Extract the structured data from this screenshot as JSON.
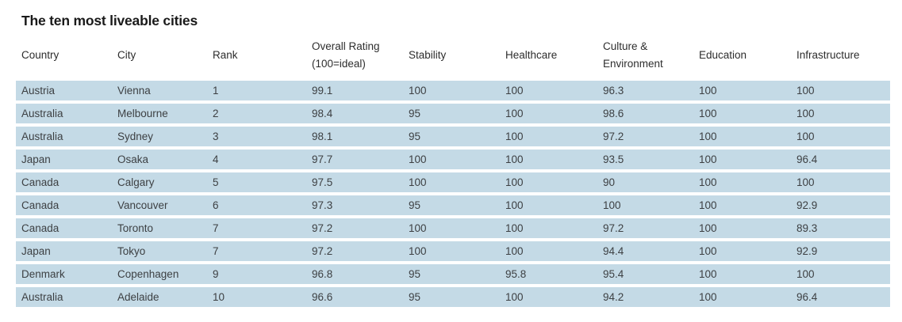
{
  "title": "The ten most liveable cities",
  "colors": {
    "row_band": "#c4dae6",
    "cell_text": "#3d4043",
    "header_text": "#2d2d2d",
    "title_text": "#1a1a1a"
  },
  "table": {
    "columns": [
      {
        "id": "country",
        "lines": [
          "Country"
        ]
      },
      {
        "id": "city",
        "lines": [
          "City"
        ]
      },
      {
        "id": "rank",
        "lines": [
          "Rank"
        ]
      },
      {
        "id": "overall-rating",
        "lines": [
          "Overall Rating",
          "(100=ideal)"
        ]
      },
      {
        "id": "stability",
        "lines": [
          "Stability"
        ]
      },
      {
        "id": "healthcare",
        "lines": [
          "Healthcare"
        ]
      },
      {
        "id": "culture-environment",
        "lines": [
          "Culture &",
          "Environment"
        ]
      },
      {
        "id": "education",
        "lines": [
          "Education"
        ]
      },
      {
        "id": "infrastructure",
        "lines": [
          "Infrastructure"
        ]
      }
    ],
    "rows": [
      [
        "Austria",
        "Vienna",
        "1",
        "99.1",
        "100",
        "100",
        "96.3",
        "100",
        "100"
      ],
      [
        "Australia",
        "Melbourne",
        "2",
        "98.4",
        "95",
        "100",
        "98.6",
        "100",
        "100"
      ],
      [
        "Australia",
        "Sydney",
        "3",
        "98.1",
        "95",
        "100",
        "97.2",
        "100",
        "100"
      ],
      [
        "Japan",
        "Osaka",
        "4",
        "97.7",
        "100",
        "100",
        "93.5",
        "100",
        "96.4"
      ],
      [
        "Canada",
        "Calgary",
        "5",
        "97.5",
        "100",
        "100",
        "90",
        "100",
        "100"
      ],
      [
        "Canada",
        "Vancouver",
        "6",
        "97.3",
        "95",
        "100",
        "100",
        "100",
        "92.9"
      ],
      [
        "Canada",
        "Toronto",
        "7",
        "97.2",
        "100",
        "100",
        "97.2",
        "100",
        "89.3"
      ],
      [
        "Japan",
        "Tokyo",
        "7",
        "97.2",
        "100",
        "100",
        "94.4",
        "100",
        "92.9"
      ],
      [
        "Denmark",
        "Copenhagen",
        "9",
        "96.8",
        "95",
        "95.8",
        "95.4",
        "100",
        "100"
      ],
      [
        "Australia",
        "Adelaide",
        "10",
        "96.6",
        "95",
        "100",
        "94.2",
        "100",
        "96.4"
      ]
    ]
  },
  "chart_data": {
    "type": "table",
    "title": "The ten most liveable cities",
    "columns": [
      "Country",
      "City",
      "Rank",
      "Overall Rating (100=ideal)",
      "Stability",
      "Healthcare",
      "Culture & Environment",
      "Education",
      "Infrastructure"
    ],
    "rows": [
      [
        "Austria",
        "Vienna",
        1,
        99.1,
        100,
        100,
        96.3,
        100,
        100
      ],
      [
        "Australia",
        "Melbourne",
        2,
        98.4,
        95,
        100,
        98.6,
        100,
        100
      ],
      [
        "Australia",
        "Sydney",
        3,
        98.1,
        95,
        100,
        97.2,
        100,
        100
      ],
      [
        "Japan",
        "Osaka",
        4,
        97.7,
        100,
        100,
        93.5,
        100,
        96.4
      ],
      [
        "Canada",
        "Calgary",
        5,
        97.5,
        100,
        100,
        90,
        100,
        100
      ],
      [
        "Canada",
        "Vancouver",
        6,
        97.3,
        95,
        100,
        100,
        100,
        92.9
      ],
      [
        "Canada",
        "Toronto",
        7,
        97.2,
        100,
        100,
        97.2,
        100,
        89.3
      ],
      [
        "Japan",
        "Tokyo",
        7,
        97.2,
        100,
        100,
        94.4,
        100,
        92.9
      ],
      [
        "Denmark",
        "Copenhagen",
        9,
        96.8,
        95,
        95.8,
        95.4,
        100,
        100
      ],
      [
        "Australia",
        "Adelaide",
        10,
        96.6,
        95,
        100,
        94.2,
        100,
        96.4
      ]
    ]
  }
}
